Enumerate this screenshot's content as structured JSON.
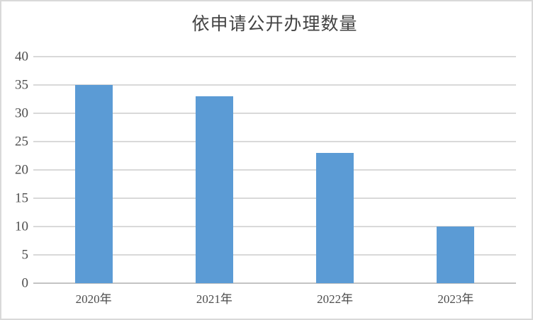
{
  "chart_data": {
    "type": "bar",
    "title": "依申请公开办理数量",
    "categories": [
      "2020年",
      "2021年",
      "2022年",
      "2023年"
    ],
    "values": [
      35,
      33,
      23,
      10
    ],
    "xlabel": "",
    "ylabel": "",
    "ylim": [
      0,
      40
    ],
    "ytick_step": 5,
    "grid": true,
    "legend_position": "none",
    "colors": {
      "bar": "#5B9BD5",
      "gridline": "#D9D9D9",
      "axis_line": "#C3C3C3",
      "tick_text": "#4D4D4D",
      "title_text": "#434343",
      "frame_border": "#D9D9D9",
      "background": "#FFFFFF"
    }
  }
}
